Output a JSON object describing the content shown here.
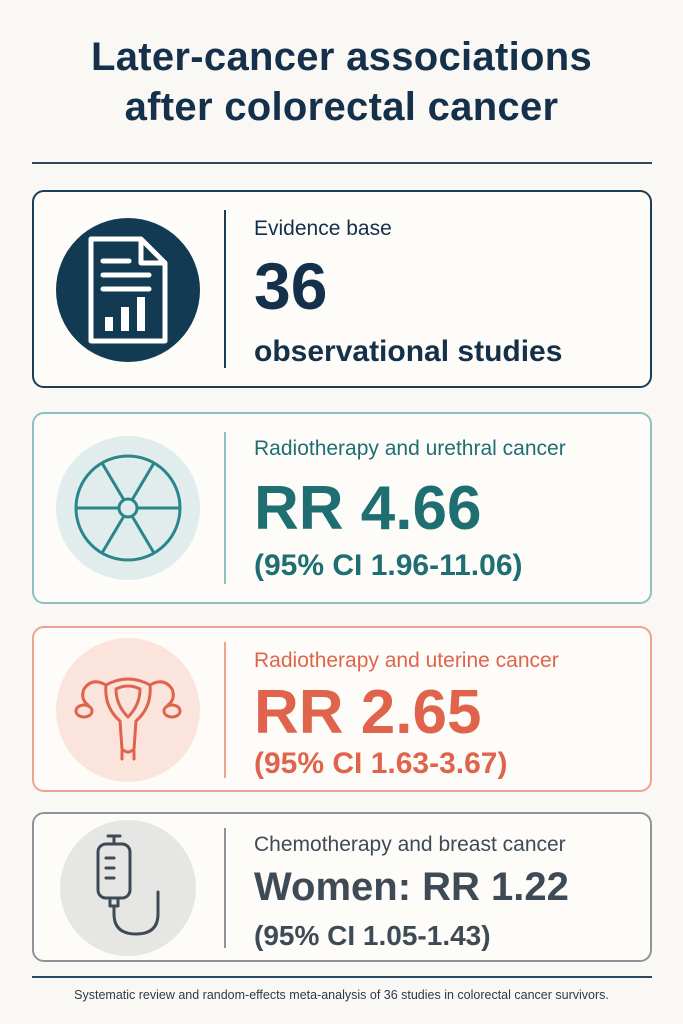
{
  "title": {
    "line1": "Later-cancer associations",
    "line2": "after colorectal cancer"
  },
  "cards": [
    {
      "label": "Evidence base",
      "value": "36",
      "detail": "observational studies",
      "icon": "document-chart-icon",
      "color": "#14304a"
    },
    {
      "label": "Radiotherapy and urethral cancer",
      "value": "RR 4.66",
      "detail": "(95% CI 1.96-11.06)",
      "icon": "radiation-icon",
      "color": "#1f6e72"
    },
    {
      "label": "Radiotherapy and uterine cancer",
      "value": "RR 2.65",
      "detail": "(95% CI 1.63-3.67)",
      "icon": "uterus-icon",
      "color": "#e0644c"
    },
    {
      "label": "Chemotherapy and breast cancer",
      "value": "Women: RR 1.22",
      "detail": "(95% CI 1.05-1.43)",
      "icon": "iv-bag-icon",
      "color": "#3e4a56"
    }
  ],
  "footer": "Systematic review and random-effects meta-analysis of 36 studies in colorectal cancer survivors."
}
